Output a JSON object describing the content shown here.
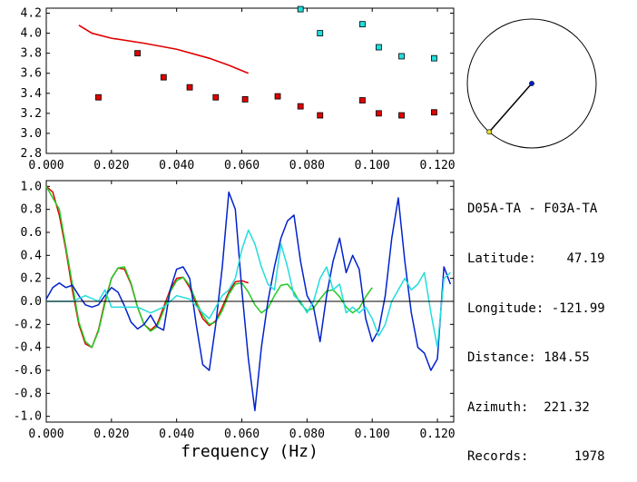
{
  "station_pair": "D05A-TA - F03A-TA",
  "info": [
    {
      "label": "Latitude:",
      "value": "47.19"
    },
    {
      "label": "Longitude:",
      "value": "-121.99"
    },
    {
      "label": "Distance:",
      "value": "184.55"
    },
    {
      "label": "Azimuth:",
      "value": "221.32"
    },
    {
      "label": "Records:",
      "value": "1978"
    }
  ],
  "colors": {
    "red": "#e00000",
    "blue": "#0022cc",
    "cyan": "#22dddd",
    "green": "#22cc22",
    "black": "#000000"
  },
  "chart_data": [
    {
      "type": "scatter",
      "xlim": [
        0,
        0.125
      ],
      "ylim": [
        2.8,
        4.25
      ],
      "x_ticks": [
        "0.000",
        "0.020",
        "0.040",
        "0.060",
        "0.080",
        "0.100",
        "0.120"
      ],
      "y_ticks": [
        "2.8",
        "3.0",
        "3.2",
        "3.4",
        "3.6",
        "3.8",
        "4.0",
        "4.2"
      ],
      "series": [
        {
          "color": "red",
          "marker": "square",
          "x": [
            0.016,
            0.028,
            0.036,
            0.044,
            0.052,
            0.061,
            0.071,
            0.078,
            0.084,
            0.097,
            0.102,
            0.109,
            0.119
          ],
          "y": [
            3.36,
            3.8,
            3.56,
            3.46,
            3.36,
            3.34,
            3.37,
            3.27,
            3.18,
            3.33,
            3.2,
            3.18,
            3.21
          ]
        },
        {
          "color": "cyan",
          "marker": "square",
          "x": [
            0.078,
            0.084,
            0.097,
            0.102,
            0.109,
            0.119
          ],
          "y": [
            4.24,
            4.0,
            4.09,
            3.86,
            3.77,
            3.75
          ]
        },
        {
          "color": "red",
          "marker": "line",
          "x": [
            0.01,
            0.014,
            0.02,
            0.03,
            0.04,
            0.05,
            0.056,
            0.062
          ],
          "y": [
            4.08,
            4.0,
            3.95,
            3.9,
            3.84,
            3.75,
            3.68,
            3.6
          ]
        }
      ]
    },
    {
      "type": "line",
      "xlim": [
        0,
        0.125
      ],
      "ylim": [
        -1.05,
        1.05
      ],
      "xlabel": "frequency (Hz)",
      "x_ticks": [
        "0.000",
        "0.020",
        "0.040",
        "0.060",
        "0.080",
        "0.100",
        "0.120"
      ],
      "y_ticks": [
        "1.0",
        "0.8",
        "0.6",
        "0.4",
        "0.2",
        "0.0",
        "-0.2",
        "-0.4",
        "-0.6",
        "-0.8",
        "-1.0"
      ],
      "series": [
        {
          "color": "red",
          "x": [
            0.0,
            0.002,
            0.004,
            0.006,
            0.008,
            0.01,
            0.012,
            0.014,
            0.016,
            0.018,
            0.02,
            0.022,
            0.024,
            0.026,
            0.028,
            0.03,
            0.032,
            0.034,
            0.036,
            0.038,
            0.04,
            0.042,
            0.044,
            0.046,
            0.048,
            0.05,
            0.052,
            0.054,
            0.056,
            0.058,
            0.06,
            0.062
          ],
          "y": [
            1.0,
            0.95,
            0.75,
            0.45,
            0.1,
            -0.2,
            -0.37,
            -0.4,
            -0.25,
            0.0,
            0.2,
            0.29,
            0.28,
            0.15,
            -0.05,
            -0.2,
            -0.25,
            -0.2,
            -0.05,
            0.1,
            0.2,
            0.21,
            0.12,
            -0.02,
            -0.15,
            -0.21,
            -0.17,
            -0.05,
            0.08,
            0.17,
            0.18,
            0.16
          ]
        },
        {
          "color": "green",
          "x": [
            0.0,
            0.004,
            0.008,
            0.01,
            0.012,
            0.014,
            0.016,
            0.018,
            0.02,
            0.022,
            0.024,
            0.026,
            0.028,
            0.03,
            0.032,
            0.034,
            0.036,
            0.038,
            0.04,
            0.042,
            0.044,
            0.046,
            0.048,
            0.05,
            0.052,
            0.054,
            0.056,
            0.058,
            0.06,
            0.062,
            0.064,
            0.066,
            0.068,
            0.07,
            0.072,
            0.074,
            0.076,
            0.078,
            0.08,
            0.082,
            0.084,
            0.086,
            0.088,
            0.09,
            0.092,
            0.094,
            0.096,
            0.098,
            0.1
          ],
          "y": [
            1.0,
            0.8,
            0.15,
            -0.18,
            -0.35,
            -0.4,
            -0.26,
            -0.02,
            0.2,
            0.29,
            0.3,
            0.16,
            -0.05,
            -0.2,
            -0.26,
            -0.22,
            -0.08,
            0.08,
            0.18,
            0.21,
            0.14,
            0.0,
            -0.12,
            -0.2,
            -0.18,
            -0.08,
            0.06,
            0.15,
            0.16,
            0.08,
            -0.03,
            -0.1,
            -0.06,
            0.05,
            0.14,
            0.15,
            0.08,
            -0.02,
            -0.08,
            -0.06,
            0.02,
            0.09,
            0.1,
            0.04,
            -0.05,
            -0.1,
            -0.06,
            0.04,
            0.12
          ]
        },
        {
          "color": "blue",
          "x": [
            0.0,
            0.002,
            0.004,
            0.006,
            0.008,
            0.01,
            0.012,
            0.014,
            0.016,
            0.018,
            0.02,
            0.022,
            0.024,
            0.026,
            0.028,
            0.03,
            0.032,
            0.034,
            0.036,
            0.038,
            0.04,
            0.042,
            0.044,
            0.046,
            0.048,
            0.05,
            0.052,
            0.054,
            0.056,
            0.058,
            0.06,
            0.062,
            0.064,
            0.066,
            0.068,
            0.07,
            0.072,
            0.074,
            0.076,
            0.078,
            0.08,
            0.082,
            0.084,
            0.086,
            0.088,
            0.09,
            0.092,
            0.094,
            0.096,
            0.098,
            0.1,
            0.102,
            0.104,
            0.106,
            0.108,
            0.11,
            0.112,
            0.114,
            0.116,
            0.118,
            0.12,
            0.122,
            0.124
          ],
          "y": [
            0.02,
            0.12,
            0.16,
            0.12,
            0.14,
            0.05,
            -0.03,
            -0.05,
            -0.03,
            0.05,
            0.12,
            0.08,
            -0.04,
            -0.18,
            -0.24,
            -0.2,
            -0.12,
            -0.22,
            -0.25,
            0.1,
            0.28,
            0.3,
            0.2,
            -0.2,
            -0.55,
            -0.6,
            -0.2,
            0.3,
            0.95,
            0.8,
            0.1,
            -0.5,
            -0.95,
            -0.4,
            0.0,
            0.3,
            0.55,
            0.7,
            0.75,
            0.35,
            0.05,
            -0.05,
            -0.35,
            0.05,
            0.35,
            0.55,
            0.25,
            0.4,
            0.28,
            -0.15,
            -0.35,
            -0.25,
            0.05,
            0.55,
            0.9,
            0.35,
            -0.1,
            -0.4,
            -0.45,
            -0.6,
            -0.5,
            0.3,
            0.15
          ]
        },
        {
          "color": "cyan",
          "x": [
            0.0,
            0.004,
            0.008,
            0.012,
            0.016,
            0.018,
            0.02,
            0.024,
            0.028,
            0.032,
            0.036,
            0.04,
            0.044,
            0.048,
            0.05,
            0.052,
            0.054,
            0.056,
            0.058,
            0.06,
            0.062,
            0.064,
            0.066,
            0.068,
            0.07,
            0.072,
            0.074,
            0.076,
            0.078,
            0.08,
            0.082,
            0.084,
            0.086,
            0.088,
            0.09,
            0.092,
            0.094,
            0.096,
            0.098,
            0.1,
            0.102,
            0.104,
            0.106,
            0.108,
            0.11,
            0.112,
            0.114,
            0.116,
            0.118,
            0.12,
            0.122,
            0.124
          ],
          "y": [
            0.0,
            0.0,
            0.0,
            0.05,
            0.0,
            0.1,
            -0.05,
            -0.05,
            -0.05,
            -0.1,
            -0.05,
            0.05,
            0.02,
            -0.1,
            -0.15,
            -0.05,
            0.05,
            0.1,
            0.2,
            0.45,
            0.62,
            0.5,
            0.3,
            0.15,
            0.1,
            0.5,
            0.3,
            0.05,
            0.0,
            -0.1,
            0.0,
            0.2,
            0.3,
            0.1,
            0.15,
            -0.1,
            -0.05,
            -0.1,
            -0.05,
            -0.15,
            -0.3,
            -0.2,
            0.0,
            0.1,
            0.2,
            0.1,
            0.15,
            0.25,
            -0.1,
            -0.4,
            0.2,
            0.25
          ]
        },
        {
          "color": "black",
          "role": "zero-line",
          "x": [
            0,
            0.125
          ],
          "y": [
            0,
            0
          ]
        }
      ]
    },
    {
      "type": "diagram",
      "description_free": true,
      "azimuth_deg": 221.32,
      "center_color": "blue",
      "end_color": "yellow"
    }
  ]
}
